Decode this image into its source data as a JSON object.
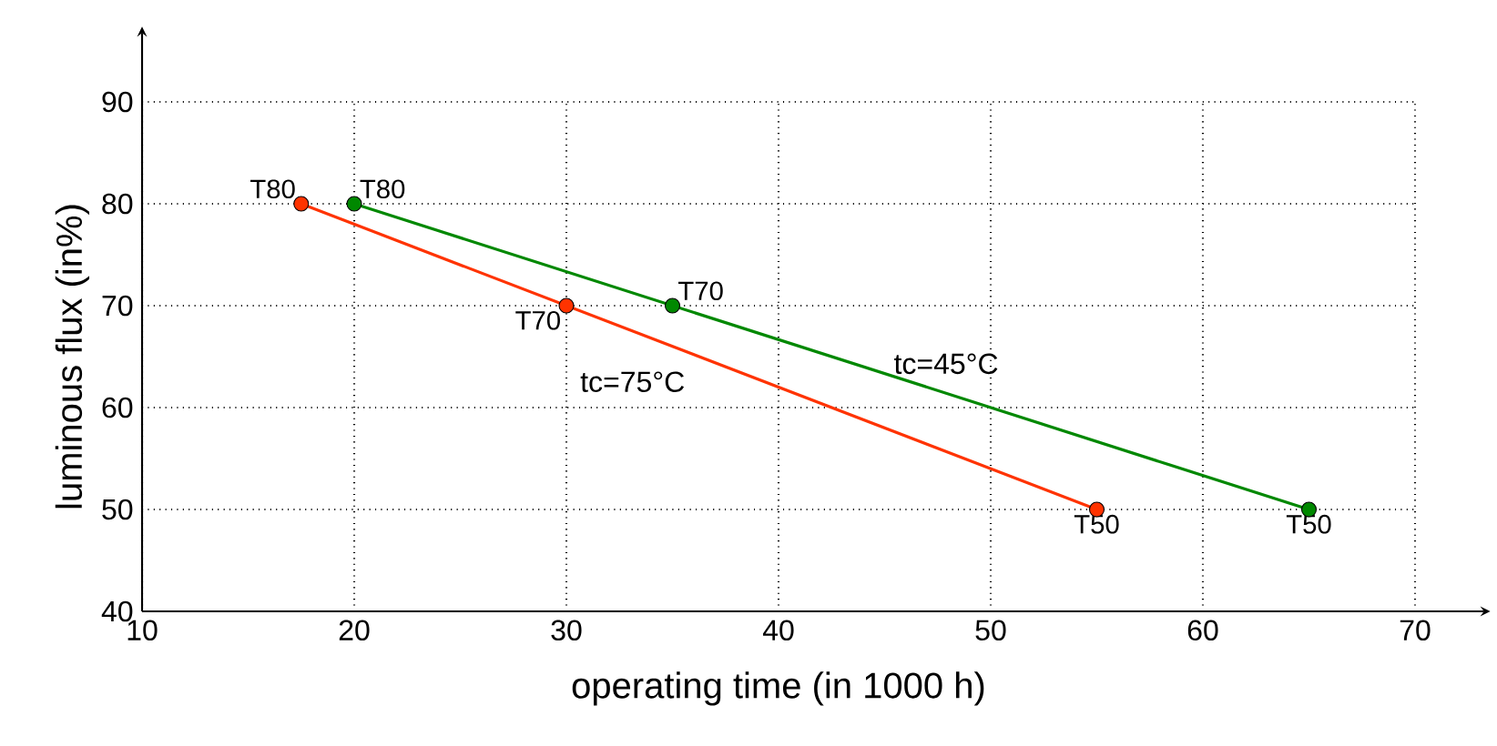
{
  "chart_data": {
    "type": "line",
    "xlabel": "operating time (in 1000 h)",
    "ylabel": "luminous flux (in%)",
    "xlim": [
      10,
      70
    ],
    "ylim": [
      40,
      90
    ],
    "xticks": [
      10,
      20,
      30,
      40,
      50,
      60,
      70
    ],
    "yticks": [
      40,
      50,
      60,
      70,
      80,
      90
    ],
    "grid": true,
    "legend": false,
    "marker": "circle",
    "line_style": "solid",
    "series": [
      {
        "name": "tc=75°C",
        "color": "#ff3300",
        "x": [
          17.5,
          30,
          55
        ],
        "values": [
          80,
          70,
          50
        ]
      },
      {
        "name": "tc=45°C",
        "color": "#008800",
        "x": [
          20,
          35,
          65
        ],
        "values": [
          80,
          70,
          50
        ]
      }
    ],
    "annotations": [
      {
        "text": "T80",
        "x": 17.5,
        "y": 80
      },
      {
        "text": "T80",
        "x": 20,
        "y": 80
      },
      {
        "text": "T70",
        "x": 30,
        "y": 70
      },
      {
        "text": "T70",
        "x": 35,
        "y": 70
      },
      {
        "text": "T50",
        "x": 55,
        "y": 50
      },
      {
        "text": "T50",
        "x": 65,
        "y": 50
      }
    ]
  }
}
